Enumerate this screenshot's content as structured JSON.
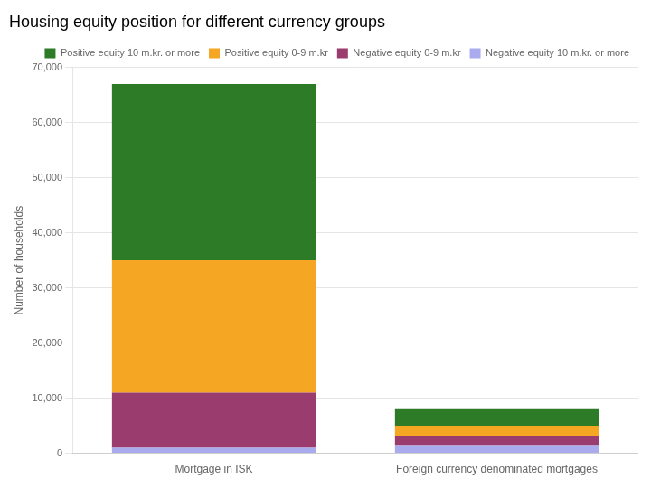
{
  "chart_data": {
    "type": "bar",
    "stacked": true,
    "title": "Housing equity position for different currency groups",
    "ylabel": "Number of households",
    "categories": [
      "Mortgage in ISK",
      "Foreign currency denominated mortgages"
    ],
    "series": [
      {
        "name": "Positive equity 10 m.kr. or more",
        "color": "#2d7a27",
        "values": [
          32000,
          3000
        ]
      },
      {
        "name": "Positive equity 0-9 m.kr",
        "color": "#f5a623",
        "values": [
          24000,
          1800
        ]
      },
      {
        "name": "Negative equity 0-9 m.kr",
        "color": "#9b3c6e",
        "values": [
          10000,
          1700
        ]
      },
      {
        "name": "Negative equity 10 m.kr. or more",
        "color": "#aaaaee",
        "values": [
          1000,
          1500
        ]
      }
    ],
    "ylim": [
      0,
      70000
    ],
    "yticks": [
      0,
      {
        "value": 10000,
        "label": "10,000"
      },
      {
        "value": 20000,
        "label": "20,000"
      },
      {
        "value": 30000,
        "label": "30,000"
      },
      {
        "value": 40000,
        "label": "40,000"
      },
      {
        "value": 50000,
        "label": "50,000"
      },
      {
        "value": 60000,
        "label": "60,000"
      },
      {
        "value": 70000,
        "label": "70,000"
      }
    ],
    "grid": true,
    "legend": "upper right"
  }
}
